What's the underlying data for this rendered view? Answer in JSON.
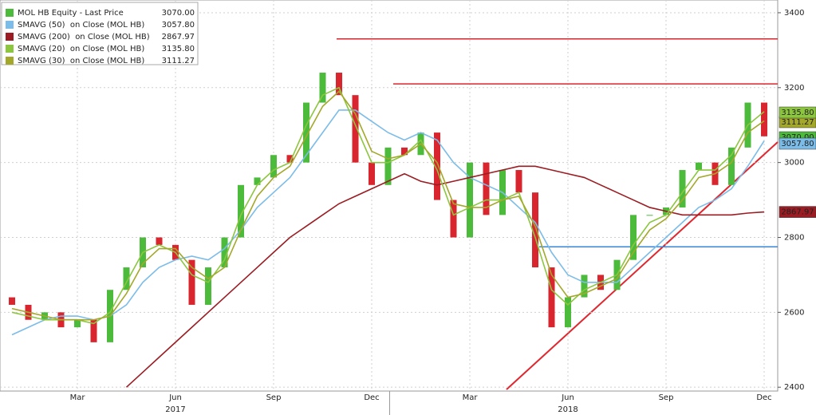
{
  "chart_data": {
    "type": "candlestick",
    "categories": [
      null,
      null,
      null,
      null,
      "Mar",
      null,
      null,
      null,
      null,
      null,
      "Jun",
      null,
      null,
      null,
      null,
      null,
      "Sep",
      null,
      null,
      null,
      null,
      null,
      "Dec",
      null,
      null,
      null,
      null,
      null,
      "Mar",
      null,
      null,
      null,
      null,
      null,
      "Jun",
      null,
      null,
      null,
      null,
      null,
      "Sep",
      null,
      null,
      null,
      null,
      null,
      "Dec"
    ],
    "year_labels": [
      {
        "value": 10,
        "label": "2017"
      },
      {
        "value": 34,
        "label": "2018"
      }
    ],
    "ylim": [
      2394,
      3434
    ],
    "yticks": [
      2400,
      2600,
      2800,
      3000,
      3200,
      3400
    ],
    "grid": true,
    "levels": [
      {
        "value": 3330,
        "color": "#d9262e"
      },
      {
        "value": 3210,
        "color": "#d9262e"
      },
      {
        "value": 2775,
        "color": "#3a86d4"
      }
    ],
    "series": [
      {
        "name": "MOL HB Equity - Last Price",
        "type": "candle",
        "color": "#4cbb3c",
        "down_color": "#d9262e",
        "last_label": "3070.00",
        "open": [
          2640,
          2620,
          2580,
          2600,
          2560,
          2580,
          2520,
          2660,
          2720,
          2800,
          2780,
          2740,
          2620,
          2720,
          2800,
          2940,
          2960,
          3020,
          3000,
          3160,
          3240,
          3180,
          3000,
          2940,
          3040,
          3020,
          3080,
          2900,
          2800,
          3000,
          2860,
          2980,
          2920,
          2720,
          2560,
          2640,
          2700,
          2660,
          2740,
          2860,
          2860,
          2880,
          2980,
          3000,
          2940,
          3040,
          3160
        ],
        "values": [
          2620,
          2580,
          2600,
          2560,
          2580,
          2520,
          2660,
          2720,
          2800,
          2780,
          2740,
          2620,
          2720,
          2800,
          2940,
          2960,
          3020,
          3000,
          3160,
          3240,
          3180,
          3000,
          2940,
          3040,
          3020,
          3080,
          2900,
          2800,
          3000,
          2860,
          2980,
          2920,
          2720,
          2560,
          2640,
          2700,
          2660,
          2740,
          2860,
          2860,
          2880,
          2980,
          3000,
          2940,
          3040,
          3160,
          3070
        ]
      },
      {
        "name": "SMAVG (50)  on Close (MOL HB)",
        "type": "line",
        "color": "#7bbce9",
        "last_label": "3057.80",
        "values": [
          2540,
          2560,
          2580,
          2590,
          2590,
          2580,
          2590,
          2620,
          2680,
          2720,
          2740,
          2750,
          2740,
          2770,
          2820,
          2880,
          2920,
          2960,
          3020,
          3080,
          3140,
          3140,
          3110,
          3080,
          3060,
          3080,
          3060,
          3000,
          2960,
          2940,
          2920,
          2880,
          2840,
          2760,
          2700,
          2680,
          2680,
          2680,
          2720,
          2760,
          2800,
          2840,
          2880,
          2900,
          2930,
          2990,
          3057.8
        ]
      },
      {
        "name": "SMAVG (200)  on Close (MOL HB)",
        "type": "line",
        "color": "#9b1c22",
        "last_label": "2867.97",
        "values": [
          null,
          null,
          null,
          null,
          null,
          null,
          null,
          2400,
          2440,
          2480,
          2520,
          2560,
          2600,
          2640,
          2680,
          2720,
          2760,
          2800,
          2830,
          2860,
          2890,
          2910,
          2930,
          2950,
          2970,
          2950,
          2940,
          2950,
          2960,
          2970,
          2980,
          2990,
          2990,
          2980,
          2970,
          2960,
          2940,
          2920,
          2900,
          2880,
          2870,
          2860,
          2860,
          2860,
          2860,
          2865,
          2867.97
        ]
      },
      {
        "name": "SMAVG (20)  on Close (MOL HB)",
        "type": "line",
        "color": "#8cc63f",
        "last_label": "3135.80",
        "values": [
          2600,
          2590,
          2580,
          2580,
          2580,
          2570,
          2600,
          2680,
          2760,
          2780,
          2760,
          2700,
          2680,
          2740,
          2860,
          2940,
          2980,
          3000,
          3100,
          3180,
          3200,
          3100,
          3000,
          3000,
          3020,
          3060,
          2980,
          2860,
          2880,
          2900,
          2900,
          2920,
          2800,
          2660,
          2620,
          2660,
          2680,
          2700,
          2780,
          2840,
          2860,
          2920,
          2980,
          2980,
          3020,
          3100,
          3135.8
        ]
      },
      {
        "name": "SMAVG (30)  on Close (MOL HB)",
        "type": "line",
        "color": "#a3a82a",
        "last_label": "3111.27",
        "values": [
          2610,
          2600,
          2590,
          2580,
          2580,
          2580,
          2590,
          2650,
          2730,
          2770,
          2770,
          2720,
          2690,
          2720,
          2820,
          2910,
          2960,
          2990,
          3070,
          3150,
          3190,
          3130,
          3030,
          3010,
          3020,
          3050,
          3000,
          2890,
          2880,
          2880,
          2900,
          2910,
          2830,
          2700,
          2640,
          2650,
          2670,
          2690,
          2760,
          2820,
          2850,
          2900,
          2960,
          2970,
          3000,
          3080,
          3111.27
        ]
      }
    ]
  }
}
